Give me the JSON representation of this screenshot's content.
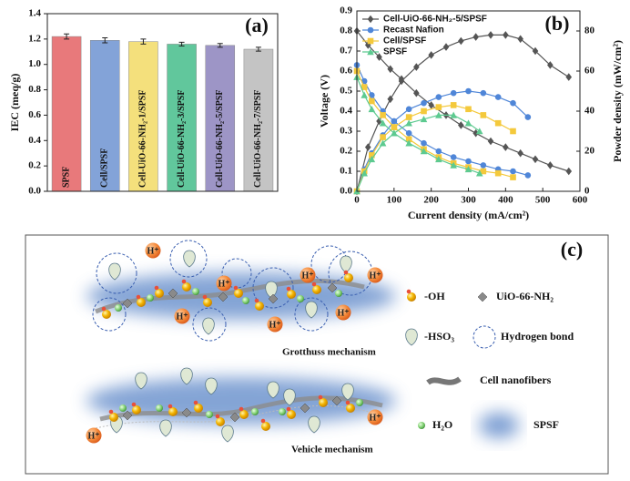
{
  "chart_data": [
    {
      "type": "bar",
      "panel_label": "(a)",
      "y_label": "IEC (meq/g)",
      "categories": [
        "SPSF",
        "Cell/SPSF",
        "Cell-UiO-66-NH₂-1/SPSF",
        "Cell-UiO-66-NH₂-3/SPSF",
        "Cell-UiO-66-NH₂-5/SPSF",
        "Cell-UiO-66-NH₂-7/SPSF"
      ],
      "values": [
        1.22,
        1.19,
        1.18,
        1.16,
        1.15,
        1.12
      ],
      "errors": [
        0.02,
        0.02,
        0.02,
        0.015,
        0.015,
        0.015
      ],
      "colors": [
        "#e8797b",
        "#83a3d8",
        "#f4e07c",
        "#61c79c",
        "#9d95c6",
        "#c4c4c4"
      ],
      "ylim": [
        0,
        1.4
      ],
      "yticks": [
        {
          "value": 0,
          "label": "0.0"
        },
        {
          "value": 0.2,
          "label": "0.2"
        },
        {
          "value": 0.4,
          "label": "0.4"
        },
        {
          "value": 0.6,
          "label": "0.6"
        },
        {
          "value": 0.8,
          "label": "0.8"
        },
        {
          "value": 1,
          "label": "1.0"
        },
        {
          "value": 1.2,
          "label": "1.2"
        },
        {
          "value": 1.4,
          "label": "1.4"
        }
      ]
    },
    {
      "type": "line",
      "panel_label": "(b)",
      "x_label": "Current density (mA/cm²)",
      "y_label": "Voltage (V)",
      "y2_label": "Powder density (mW/cm²)",
      "xlim": [
        0,
        600
      ],
      "xticks": [
        0,
        100,
        200,
        300,
        400,
        500,
        600
      ],
      "ylim": [
        0,
        0.9
      ],
      "yticks": [
        {
          "value": 0,
          "label": "0.0"
        },
        {
          "value": 0.1,
          "label": "0.1"
        },
        {
          "value": 0.2,
          "label": "0.2"
        },
        {
          "value": 0.3,
          "label": "0.3"
        },
        {
          "value": 0.4,
          "label": "0.4"
        },
        {
          "value": 0.5,
          "label": "0.5"
        },
        {
          "value": 0.6,
          "label": "0.6"
        },
        {
          "value": 0.7,
          "label": "0.7"
        },
        {
          "value": 0.8,
          "label": "0.8"
        },
        {
          "value": 0.9,
          "label": "0.9"
        }
      ],
      "y2lim": [
        0,
        90
      ],
      "y2ticks": [
        0,
        20,
        40,
        60,
        80
      ],
      "legend": "upper left",
      "series": [
        {
          "name": "Cell-UiO-66-NH₂-5/SPSF",
          "color": "#555555",
          "marker": "diamond",
          "x": [
            0,
            30,
            60,
            90,
            120,
            160,
            200,
            240,
            280,
            320,
            360,
            400,
            440,
            480,
            520,
            570
          ],
          "voltage": [
            0.8,
            0.73,
            0.67,
            0.61,
            0.56,
            0.49,
            0.43,
            0.38,
            0.33,
            0.29,
            0.25,
            0.22,
            0.19,
            0.16,
            0.13,
            0.1
          ],
          "power": [
            0,
            22,
            35,
            46,
            55,
            62,
            68,
            72,
            75,
            77,
            78,
            78,
            76,
            70,
            63,
            57
          ]
        },
        {
          "name": "Recast Nafion",
          "color": "#4f86d8",
          "marker": "circle",
          "x": [
            0,
            20,
            40,
            70,
            100,
            140,
            180,
            220,
            260,
            300,
            340,
            380,
            420,
            460
          ],
          "voltage": [
            0.63,
            0.55,
            0.48,
            0.4,
            0.35,
            0.29,
            0.24,
            0.2,
            0.17,
            0.15,
            0.13,
            0.11,
            0.1,
            0.08
          ],
          "power": [
            0,
            11,
            19,
            28,
            35,
            41,
            44,
            47,
            49,
            50,
            49,
            47,
            44,
            37
          ]
        },
        {
          "name": "Cell/SPSF",
          "color": "#f4c93c",
          "marker": "square",
          "x": [
            0,
            20,
            40,
            70,
            100,
            140,
            180,
            220,
            260,
            300,
            340,
            380,
            420
          ],
          "voltage": [
            0.6,
            0.52,
            0.45,
            0.38,
            0.32,
            0.26,
            0.21,
            0.17,
            0.14,
            0.12,
            0.1,
            0.09,
            0.07
          ],
          "power": [
            0,
            10,
            18,
            27,
            32,
            37,
            40,
            42,
            43,
            41,
            38,
            34,
            30
          ]
        },
        {
          "name": "SPSF",
          "color": "#5dca90",
          "marker": "triangle",
          "x": [
            0,
            20,
            40,
            70,
            100,
            140,
            180,
            220,
            260,
            300,
            330
          ],
          "voltage": [
            0.57,
            0.48,
            0.41,
            0.34,
            0.29,
            0.24,
            0.2,
            0.16,
            0.13,
            0.11,
            0.09
          ],
          "power": [
            0,
            9,
            16,
            24,
            29,
            34,
            36,
            38,
            38,
            34,
            30
          ]
        }
      ]
    }
  ],
  "diagram": {
    "panel_label": "(c)",
    "proton": "H⁺",
    "mechanisms": [
      "Grotthuss mechanism",
      "Vehicle mechanism"
    ],
    "legend": [
      "-OH",
      "UiO-66-NH₂",
      "-HSO₃",
      "Hydrogen bond",
      "Cell nanofibers",
      "H₂O",
      "SPSF"
    ]
  }
}
